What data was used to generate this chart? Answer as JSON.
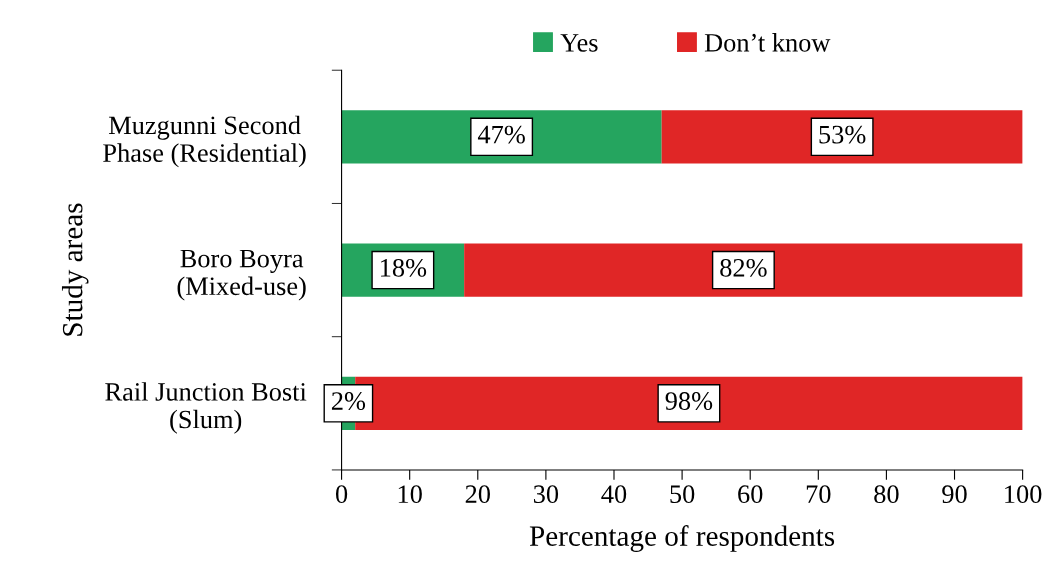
{
  "chart_data": {
    "type": "bar",
    "orientation": "horizontal",
    "stacked": true,
    "categories": [
      "Muzgunni Second\nPhase (Residential)",
      "Boro Boyra\n(Mixed-use)",
      "Rail Junction Bosti\n(Slum)"
    ],
    "series": [
      {
        "name": "Yes",
        "color": "#25a55f",
        "values": [
          47,
          18,
          2
        ],
        "value_labels": [
          "47%",
          "18%",
          "2%"
        ]
      },
      {
        "name": "Don’t know",
        "color": "#e02626",
        "values": [
          53,
          82,
          98
        ],
        "value_labels": [
          "53%",
          "82%",
          "98%"
        ]
      }
    ],
    "xlim": [
      0,
      100
    ],
    "xticks": [
      0,
      10,
      20,
      30,
      40,
      50,
      60,
      70,
      80,
      90,
      100
    ],
    "xlabel": "Percentage of respondents",
    "ylabel": "Study areas",
    "grid": false,
    "legend": "top"
  }
}
